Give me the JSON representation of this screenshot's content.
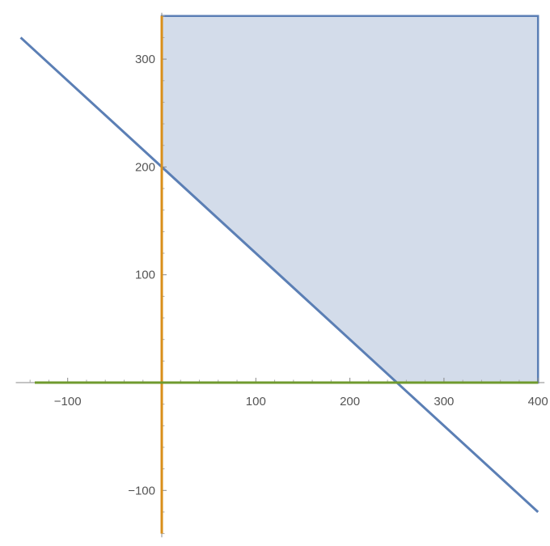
{
  "chart_data": {
    "type": "area",
    "title": "",
    "xlabel": "",
    "ylabel": "",
    "xlim": [
      -150,
      400
    ],
    "ylim": [
      -145,
      340
    ],
    "x_ticks": [
      {
        "value": -100,
        "label": "−100"
      },
      {
        "value": 100,
        "label": "100"
      },
      {
        "value": 200,
        "label": "200"
      },
      {
        "value": 300,
        "label": "300"
      },
      {
        "value": 400,
        "label": "400"
      }
    ],
    "y_ticks": [
      {
        "value": -100,
        "label": "−100"
      },
      {
        "value": 100,
        "label": "100"
      },
      {
        "value": 200,
        "label": "200"
      },
      {
        "value": 300,
        "label": "300"
      }
    ],
    "x_minor_step": 20,
    "y_minor_step": 20,
    "feasible_region": {
      "vertices": [
        [
          0,
          200
        ],
        [
          0,
          340
        ],
        [
          400,
          340
        ],
        [
          400,
          0
        ],
        [
          250,
          0
        ]
      ],
      "fill": "#d3dcea",
      "stroke": "#5b7fb5"
    },
    "series": [
      {
        "kind": "line",
        "points": [
          [
            -150,
            320
          ],
          [
            400,
            -120
          ]
        ],
        "color": "#5b7fb5"
      },
      {
        "kind": "vline",
        "x": 0,
        "y_range": [
          -140,
          340
        ],
        "color": "#d98f1a"
      },
      {
        "kind": "hline",
        "y": 0,
        "x_range": [
          -135,
          400
        ],
        "color": "#6f9a2e"
      }
    ],
    "grid": false,
    "legend": "none"
  }
}
